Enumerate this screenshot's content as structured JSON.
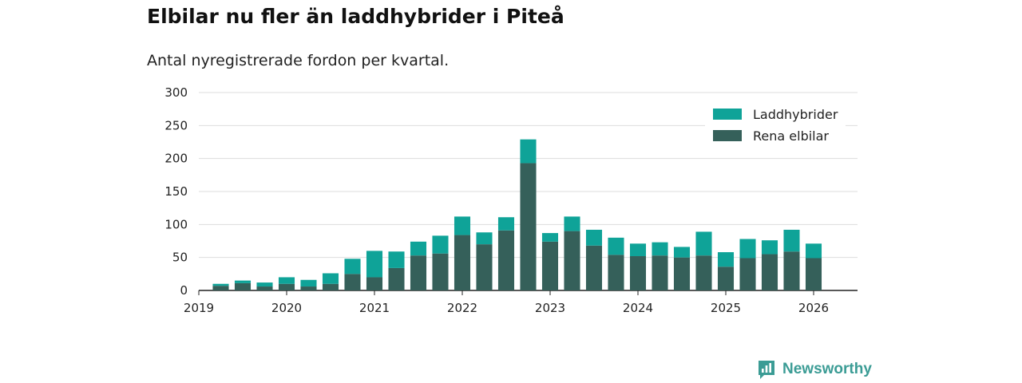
{
  "title": "Elbilar nu fler än laddhybrider i Piteå",
  "subtitle": "Antal nyregistrerade fordon per kvartal.",
  "brand": {
    "name": "Newsworthy",
    "icon": "newsworthy-logo-icon",
    "color": "#3b9c95"
  },
  "chart_data": {
    "type": "bar",
    "stacked": true,
    "x_start": 2019.0,
    "x_step": 0.25,
    "xlim": [
      2019.0,
      2026.5
    ],
    "ylim": [
      0,
      300
    ],
    "y_ticks": [
      0,
      50,
      100,
      150,
      200,
      250,
      300
    ],
    "x_ticks": [
      {
        "value": 2019,
        "label": "2019"
      },
      {
        "value": 2020,
        "label": "2020"
      },
      {
        "value": 2021,
        "label": "2021"
      },
      {
        "value": 2022,
        "label": "2022"
      },
      {
        "value": 2023,
        "label": "2023"
      },
      {
        "value": 2024,
        "label": "2024"
      },
      {
        "value": 2025,
        "label": "2025"
      },
      {
        "value": 2026,
        "label": "2026"
      }
    ],
    "grid": true,
    "legend_position": "top-right",
    "series": [
      {
        "name": "Rena elbilar",
        "color": "#35605a",
        "values": [
          0,
          7,
          11,
          6,
          10,
          6,
          10,
          25,
          20,
          34,
          53,
          56,
          84,
          70,
          91,
          193,
          74,
          90,
          68,
          54,
          52,
          53,
          50,
          53,
          36,
          49,
          55,
          59,
          49
        ]
      },
      {
        "name": "Laddhybrider",
        "color": "#0fa398",
        "values": [
          0,
          3,
          4,
          6,
          10,
          10,
          16,
          23,
          40,
          25,
          21,
          27,
          28,
          18,
          20,
          36,
          13,
          22,
          24,
          26,
          19,
          20,
          16,
          36,
          22,
          29,
          21,
          33,
          22
        ]
      }
    ]
  }
}
